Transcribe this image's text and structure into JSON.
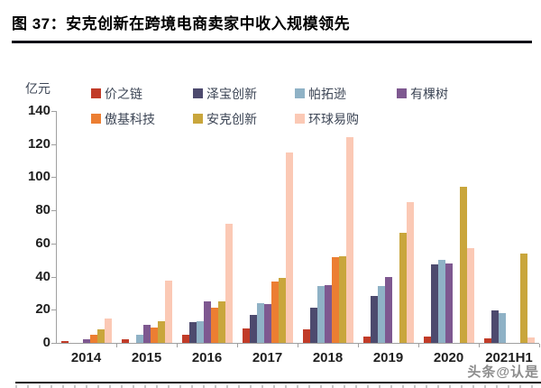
{
  "figure": {
    "title": "图 37：安克创新在跨境电商卖家中收入规模领先",
    "watermark": "头条@认是"
  },
  "chart_data": {
    "type": "bar",
    "title": "安克创新在跨境电商卖家中收入规模领先",
    "unit_label": "亿元",
    "xlabel": "",
    "ylabel": "亿元",
    "ylim": [
      0,
      140
    ],
    "yticks": [
      0,
      20,
      40,
      60,
      80,
      100,
      120,
      140
    ],
    "grid": false,
    "legend_position": "top",
    "categories": [
      "2014",
      "2015",
      "2016",
      "2017",
      "2018",
      "2019",
      "2020",
      "2021H1"
    ],
    "series": [
      {
        "name": "价之链",
        "color": "#c13b28",
        "values": [
          1,
          2,
          5,
          8.5,
          8,
          4,
          4,
          2.5
        ]
      },
      {
        "name": "泽宝创新",
        "color": "#4d4a6e",
        "values": [
          null,
          null,
          12.5,
          17,
          21,
          28.5,
          47.5,
          19.5
        ]
      },
      {
        "name": "帕拓逊",
        "color": "#8fb2c6",
        "values": [
          null,
          5,
          13,
          24,
          34.5,
          34.5,
          50,
          18
        ]
      },
      {
        "name": "有棵树",
        "color": "#7e5890",
        "values": [
          2,
          11,
          25,
          23.5,
          35,
          39.5,
          48,
          null
        ]
      },
      {
        "name": "傲基科技",
        "color": "#ec7e32",
        "values": [
          5,
          9,
          21.5,
          37,
          51.5,
          null,
          null,
          null
        ]
      },
      {
        "name": "安克创新",
        "color": "#c9a63c",
        "values": [
          8,
          13,
          25,
          39,
          52.5,
          66.5,
          94,
          54
        ]
      },
      {
        "name": "环球易购",
        "color": "#fbc9b5",
        "values": [
          14.5,
          37.5,
          72,
          115,
          124,
          85,
          57,
          3
        ]
      }
    ],
    "axis_color": "#a0a0a0"
  }
}
